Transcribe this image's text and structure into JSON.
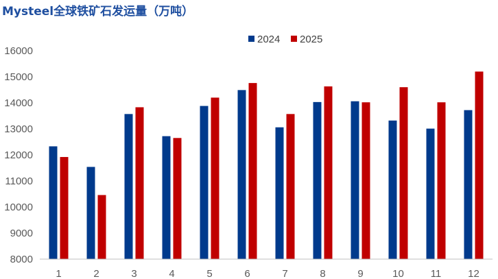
{
  "chart_data": {
    "type": "bar",
    "title": "Mysteel全球铁矿石发运量（万吨）",
    "categories": [
      "1",
      "2",
      "3",
      "4",
      "5",
      "6",
      "7",
      "8",
      "9",
      "10",
      "11",
      "12"
    ],
    "series": [
      {
        "name": "2024",
        "color": "#003a8c",
        "values": [
          12330,
          11540,
          13570,
          12720,
          13880,
          14490,
          13060,
          14030,
          14060,
          13320,
          13010,
          13720
        ]
      },
      {
        "name": "2025",
        "color": "#c00000",
        "values": [
          11920,
          10460,
          13830,
          12650,
          14200,
          14760,
          13570,
          14630,
          14020,
          14600,
          14020,
          15200
        ]
      }
    ],
    "ylim": [
      8000,
      16000
    ],
    "yticks": [
      8000,
      9000,
      10000,
      11000,
      12000,
      13000,
      14000,
      15000,
      16000
    ],
    "legend_position": "top-center",
    "grid": false
  }
}
